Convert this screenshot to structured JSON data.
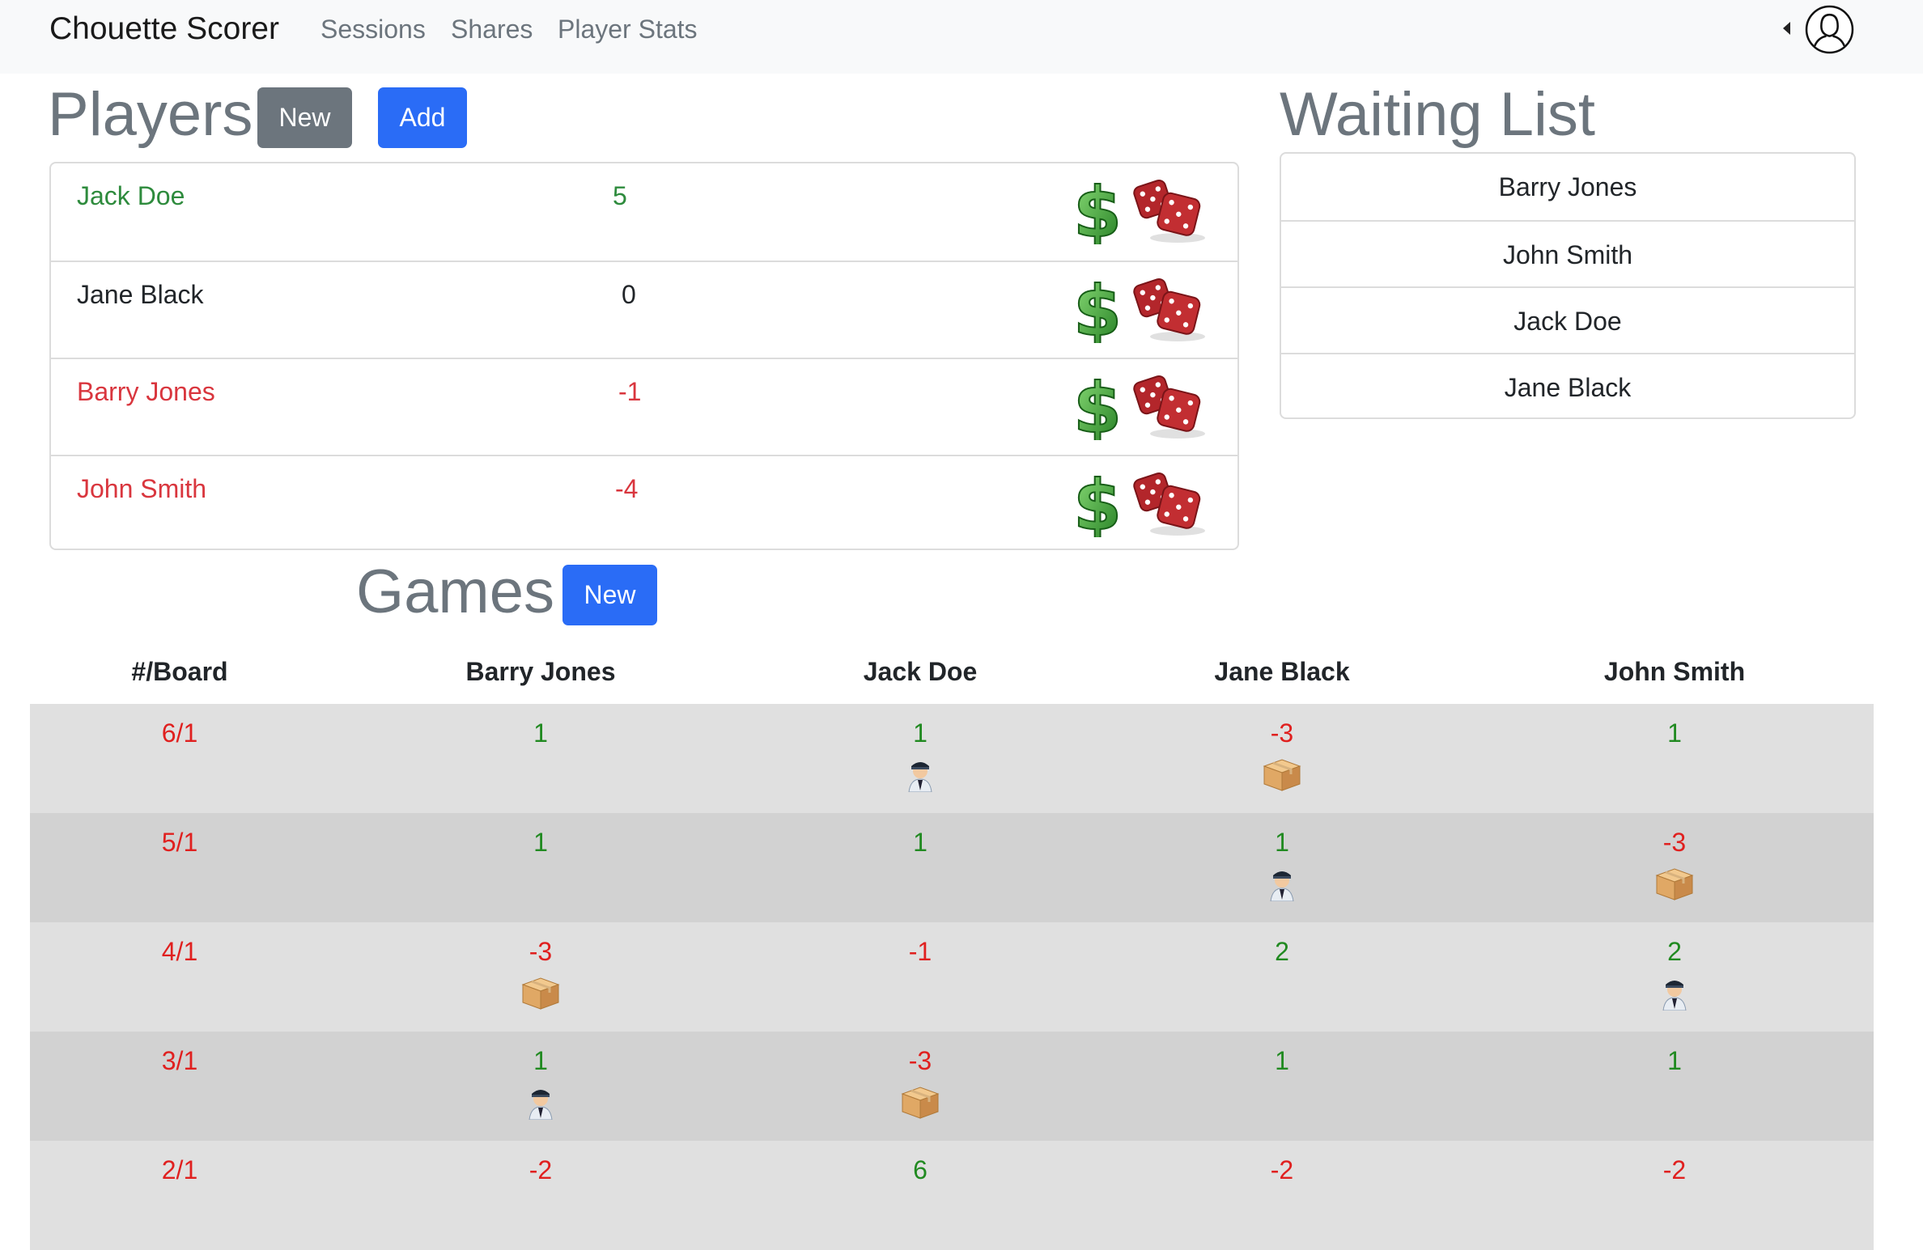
{
  "nav": {
    "brand": "Chouette Scorer",
    "links": [
      "Sessions",
      "Shares",
      "Player Stats"
    ]
  },
  "players": {
    "title": "Players",
    "new_label": "New",
    "add_label": "Add",
    "rows": [
      {
        "name": "Jack Doe",
        "score": "5",
        "status": "positive"
      },
      {
        "name": "Jane Black",
        "score": "0",
        "status": "neutral"
      },
      {
        "name": "Barry Jones",
        "score": "-1",
        "status": "negative"
      },
      {
        "name": "John Smith",
        "score": "-4",
        "status": "negative"
      }
    ],
    "row_icons": [
      "dollar-icon",
      "dice-icon"
    ]
  },
  "waiting": {
    "title": "Waiting List",
    "items": [
      "Barry Jones",
      "John Smith",
      "Jack Doe",
      "Jane Black"
    ]
  },
  "games": {
    "title": "Games",
    "new_label": "New",
    "headers": [
      "#/Board",
      "Barry Jones",
      "Jack Doe",
      "Jane Black",
      "John Smith"
    ],
    "rows": [
      {
        "board": "6/1",
        "cells": [
          {
            "value": "1",
            "icon": ""
          },
          {
            "value": "1",
            "icon": "captain-icon"
          },
          {
            "value": "-3",
            "icon": "box-icon"
          },
          {
            "value": "1",
            "icon": ""
          }
        ]
      },
      {
        "board": "5/1",
        "cells": [
          {
            "value": "1",
            "icon": ""
          },
          {
            "value": "1",
            "icon": ""
          },
          {
            "value": "1",
            "icon": "captain-icon"
          },
          {
            "value": "-3",
            "icon": "box-icon"
          }
        ]
      },
      {
        "board": "4/1",
        "cells": [
          {
            "value": "-3",
            "icon": "box-icon"
          },
          {
            "value": "-1",
            "icon": ""
          },
          {
            "value": "2",
            "icon": ""
          },
          {
            "value": "2",
            "icon": "captain-icon"
          }
        ]
      },
      {
        "board": "3/1",
        "cells": [
          {
            "value": "1",
            "icon": "captain-icon"
          },
          {
            "value": "-3",
            "icon": "box-icon"
          },
          {
            "value": "1",
            "icon": ""
          },
          {
            "value": "1",
            "icon": ""
          }
        ]
      },
      {
        "board": "2/1",
        "cells": [
          {
            "value": "-2",
            "icon": ""
          },
          {
            "value": "6",
            "icon": ""
          },
          {
            "value": "-2",
            "icon": ""
          },
          {
            "value": "-2",
            "icon": ""
          }
        ]
      }
    ]
  },
  "colors": {
    "positive": "#218a21",
    "negative": "#e0201f",
    "row_light": "#e0e0e0",
    "row_dark": "#d2d2d2",
    "primary": "#2a6cf6",
    "secondary": "#6c757d"
  }
}
